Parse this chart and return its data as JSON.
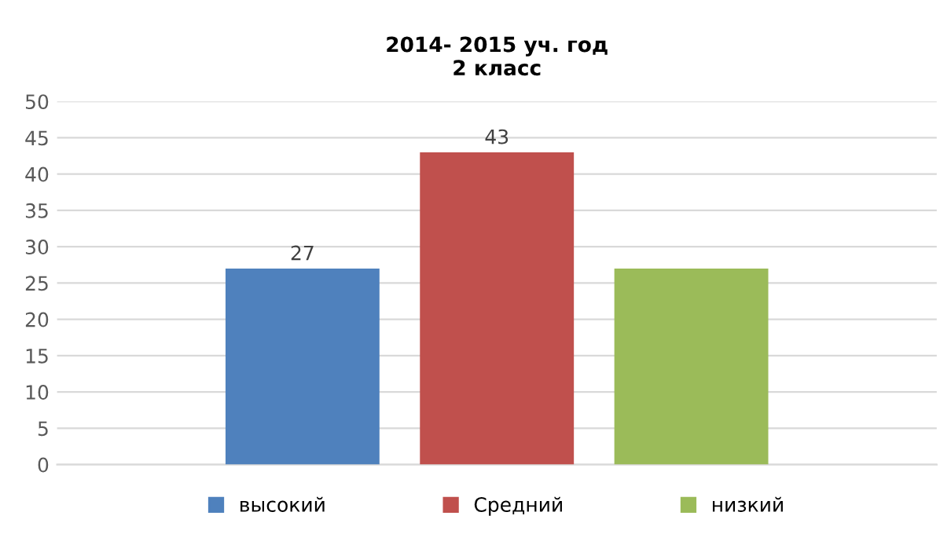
{
  "chart_data": {
    "type": "bar",
    "title": "2014- 2015 уч. год\n2 класс",
    "categories": [
      null
    ],
    "series": [
      {
        "name": "высокий",
        "color": "#4f81bd",
        "values": [
          27
        ],
        "value_labels": [
          "27"
        ]
      },
      {
        "name": "Средний",
        "color": "#c0504d",
        "values": [
          43
        ],
        "value_labels": [
          "43"
        ]
      },
      {
        "name": "низкий",
        "color": "#9bbb59",
        "values": [
          27
        ],
        "value_labels": [
          null
        ]
      }
    ],
    "ylim": [
      0,
      50
    ],
    "yticks": [
      0,
      5,
      10,
      15,
      20,
      25,
      30,
      35,
      40,
      45,
      50
    ],
    "grid": "y",
    "legend": "bottom"
  }
}
